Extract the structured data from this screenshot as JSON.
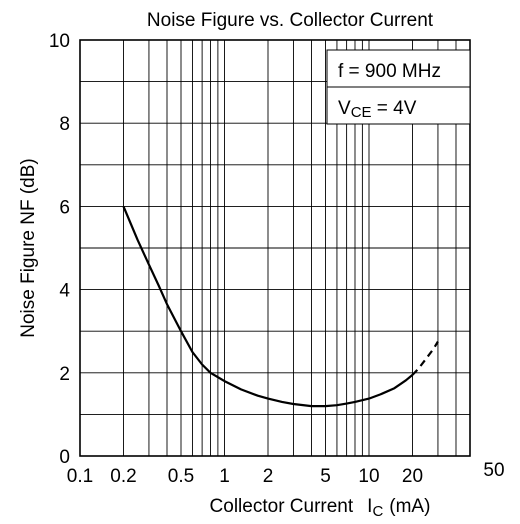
{
  "chart_data": {
    "type": "line",
    "title": "Noise Figure vs. Collector Current",
    "xlabel": "Collector Current",
    "xlabel_symbol": "I",
    "xlabel_subscript": "C",
    "xlabel_unit": "(mA)",
    "ylabel": "Noise Figure  NF (dB)",
    "x_scale": "log",
    "xlim": [
      0.1,
      50
    ],
    "ylim": [
      0,
      10
    ],
    "grid": true,
    "x_ticks": [
      {
        "value": 0.1,
        "label": "0.1"
      },
      {
        "value": 0.2,
        "label": "0.2"
      },
      {
        "value": 0.5,
        "label": "0.5"
      },
      {
        "value": 1,
        "label": "1"
      },
      {
        "value": 2,
        "label": "2"
      },
      {
        "value": 5,
        "label": "5"
      },
      {
        "value": 10,
        "label": "10"
      },
      {
        "value": 20,
        "label": "20"
      },
      {
        "value": 50,
        "label": "50"
      }
    ],
    "y_ticks": [
      {
        "value": 0,
        "label": "0"
      },
      {
        "value": 2,
        "label": "2"
      },
      {
        "value": 4,
        "label": "4"
      },
      {
        "value": 6,
        "label": "6"
      },
      {
        "value": 8,
        "label": "8"
      },
      {
        "value": 10,
        "label": "10"
      }
    ],
    "annotations": {
      "frequency": "f = 900 MHz",
      "vce_prefix": "V",
      "vce_subscript": "CE",
      "vce_value": " = 4V"
    },
    "series": [
      {
        "style": "solid",
        "x": [
          0.2,
          0.25,
          0.3,
          0.35,
          0.4,
          0.5,
          0.6,
          0.7,
          0.8,
          1.0,
          1.3,
          1.7,
          2.0,
          2.5,
          3.0,
          4.0,
          5.0,
          6.0,
          7.0,
          8.0,
          10.0,
          12.0,
          15.0,
          18.0,
          20.0
        ],
        "y": [
          6.0,
          5.2,
          4.6,
          4.1,
          3.65,
          3.0,
          2.5,
          2.2,
          2.0,
          1.8,
          1.6,
          1.45,
          1.38,
          1.3,
          1.25,
          1.2,
          1.2,
          1.22,
          1.26,
          1.3,
          1.38,
          1.48,
          1.63,
          1.82,
          1.95
        ]
      },
      {
        "style": "dashed",
        "x": [
          20,
          22,
          25,
          28,
          30
        ],
        "y": [
          1.95,
          2.1,
          2.35,
          2.58,
          2.75
        ]
      }
    ]
  }
}
